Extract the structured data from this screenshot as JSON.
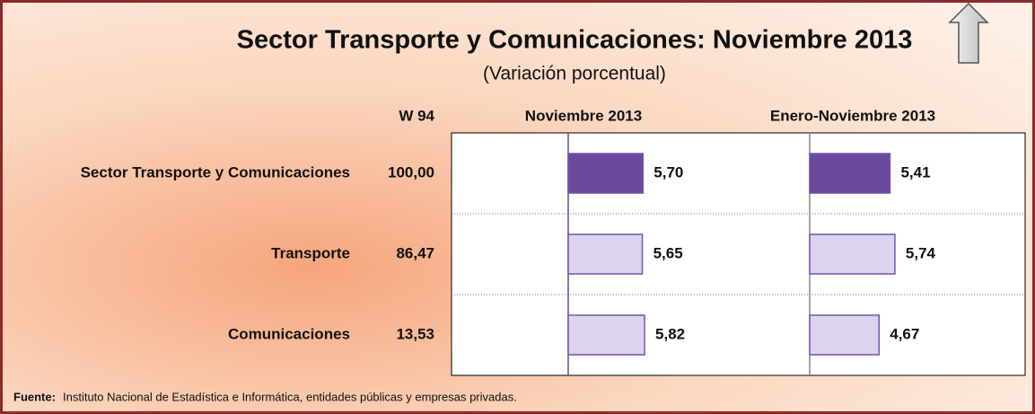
{
  "chart_data": {
    "type": "bar",
    "title": "Sector Transporte y Comunicaciones:  Noviembre 2013",
    "subtitle": "(Variación porcentual)",
    "weights_header": "W 94",
    "categories": [
      "Sector Transporte y Comunicaciones",
      "Transporte",
      "Comunicaciones"
    ],
    "weights": [
      "100,00",
      "86,47",
      "13,53"
    ],
    "colors": [
      "#6a4a9c",
      "#ddd3ee",
      "#ddd3ee"
    ],
    "xlim": [
      0,
      13
    ],
    "series": [
      {
        "name": "Noviembre 2013",
        "values": [
          5.7,
          5.65,
          5.82
        ],
        "value_labels": [
          "5,70",
          "5,65",
          "5,82"
        ]
      },
      {
        "name": "Enero-Noviembre 2013",
        "values": [
          5.41,
          5.74,
          4.67
        ],
        "value_labels": [
          "5,41",
          "5,74",
          "4,67"
        ]
      }
    ],
    "source_label": "Fuente:",
    "source": "Instituto Nacional de Estadística e Informática, entidades públicas y empresas privadas."
  }
}
